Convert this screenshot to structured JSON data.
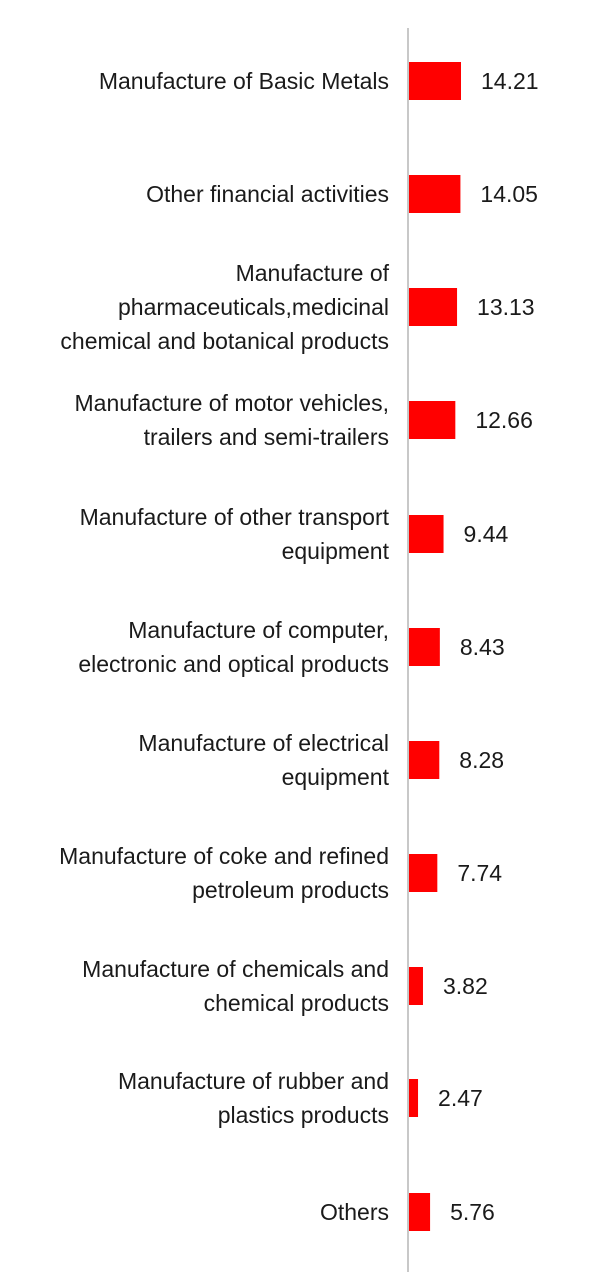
{
  "chart_data": {
    "type": "bar",
    "orientation": "horizontal",
    "categories": [
      [
        "Manufacture of Basic Metals"
      ],
      [
        "Other financial activities"
      ],
      [
        "Manufacture of",
        "pharmaceuticals,medicinal",
        "chemical and botanical products"
      ],
      [
        "Manufacture of motor vehicles,",
        "trailers and semi-trailers"
      ],
      [
        "Manufacture of other transport",
        "equipment"
      ],
      [
        "Manufacture of computer,",
        "electronic and optical products"
      ],
      [
        "Manufacture of electrical",
        "equipment"
      ],
      [
        "Manufacture of coke and refined",
        "petroleum products"
      ],
      [
        "Manufacture of chemicals and",
        "chemical products"
      ],
      [
        "Manufacture of rubber and",
        "plastics products"
      ],
      [
        "Others"
      ]
    ],
    "values": [
      14.21,
      14.05,
      13.13,
      12.66,
      9.44,
      8.43,
      8.28,
      7.74,
      3.82,
      2.47,
      5.76
    ],
    "value_labels": [
      "14.21",
      "14.05",
      "13.13",
      "12.66",
      "9.44",
      "8.43",
      "8.28",
      "7.74",
      "3.82",
      "2.47",
      "5.76"
    ],
    "bar_color": "#ff0000",
    "axis_color": "#c8c8c8",
    "xlim": [
      0,
      14.21
    ],
    "grid": false,
    "legend": "none"
  }
}
